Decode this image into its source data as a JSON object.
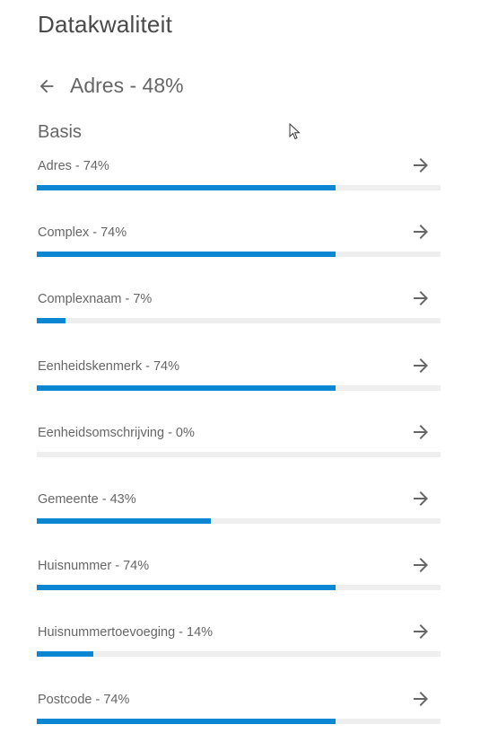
{
  "header": {
    "title": "Datakwaliteit"
  },
  "subheader": {
    "title": "Adres - 48%"
  },
  "section": {
    "title": "Basis"
  },
  "colors": {
    "accent": "#0a86d2",
    "track": "#eeeeee",
    "text": "#666666"
  },
  "items": [
    {
      "label": "Adres - 74%",
      "value": 0.74
    },
    {
      "label": "Complex - 74%",
      "value": 0.74
    },
    {
      "label": "Complexnaam - 7%",
      "value": 0.07
    },
    {
      "label": "Eenheidskenmerk - 74%",
      "value": 0.74
    },
    {
      "label": "Eenheidsomschrijving - 0%",
      "value": 0.0
    },
    {
      "label": "Gemeente - 43%",
      "value": 0.43
    },
    {
      "label": "Huisnummer - 74%",
      "value": 0.74
    },
    {
      "label": "Huisnummertoevoeging - 14%",
      "value": 0.14
    },
    {
      "label": "Postcode - 74%",
      "value": 0.74
    }
  ]
}
